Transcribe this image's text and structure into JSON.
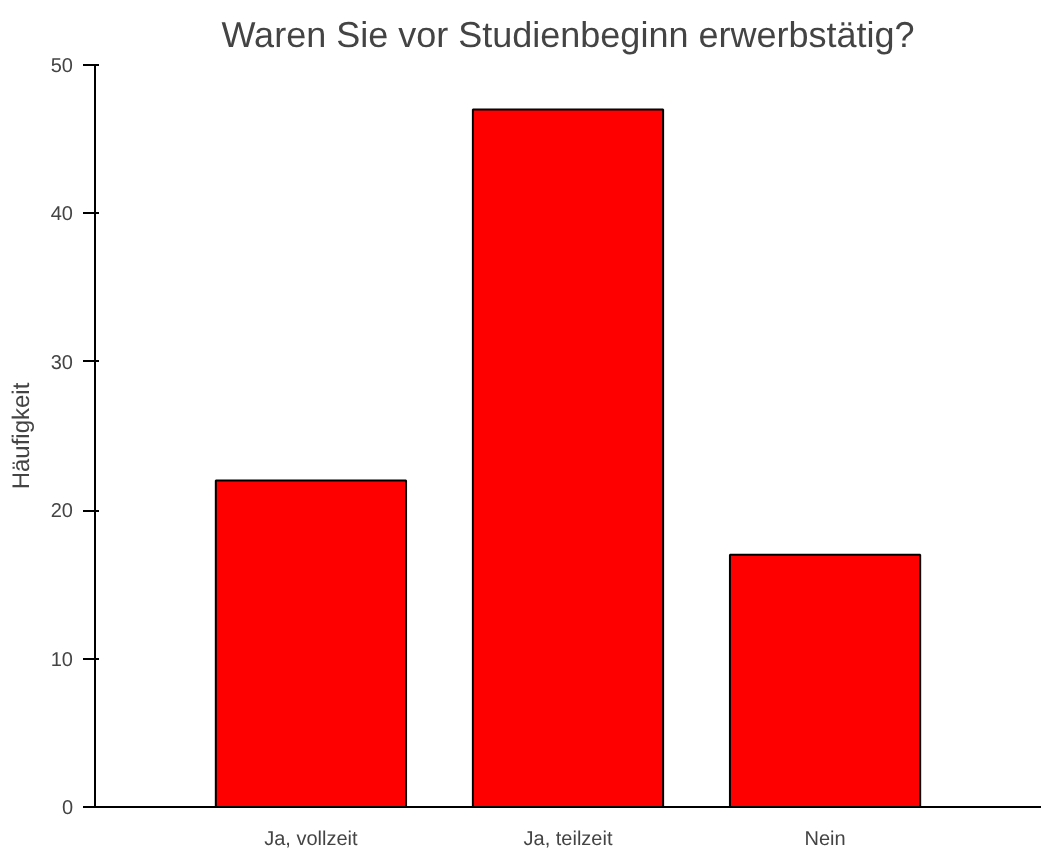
{
  "chart_data": {
    "type": "bar",
    "title": "Waren Sie vor Studienbeginn erwerbstätig?",
    "ylabel": "Häufigkeit",
    "categories": [
      "Ja, vollzeit",
      "Ja, teilzeit",
      "Nein"
    ],
    "values": [
      22,
      47,
      17
    ],
    "color": "#ff0000",
    "ylim": [
      0,
      50
    ],
    "yticks": [
      0,
      10,
      20,
      30,
      40,
      50
    ],
    "grid": false
  }
}
